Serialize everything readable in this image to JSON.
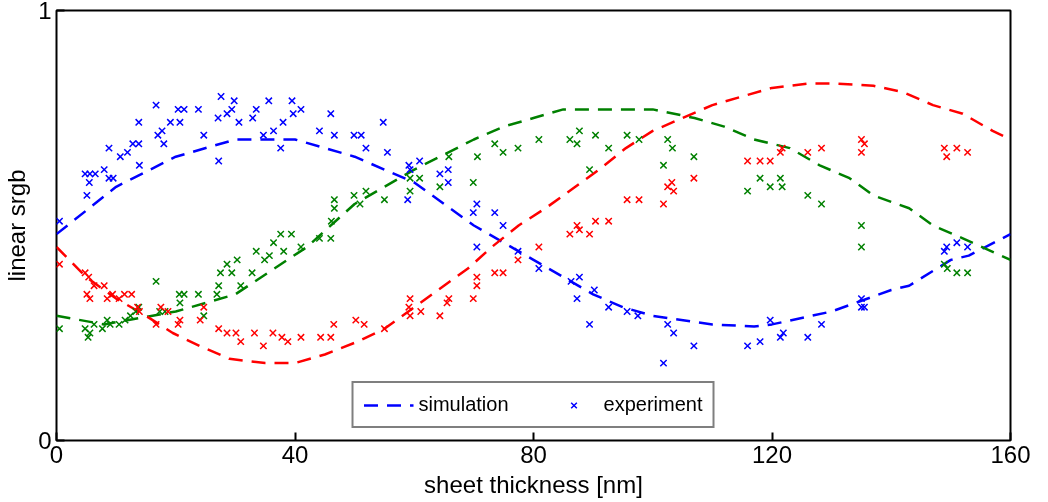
{
  "chart_data": {
    "type": "scatter",
    "xlabel": "sheet thickness [nm]",
    "ylabel": "linear srgb",
    "xlim": [
      0,
      160
    ],
    "ylim": [
      0,
      1
    ],
    "xticks": [
      0,
      40,
      80,
      120,
      160
    ],
    "yticks": [
      0,
      1
    ],
    "legend": "bottom",
    "series": [
      {
        "name": "simulation",
        "type": "line",
        "marker": "none",
        "line_style": "dashed",
        "color": "#0000ff",
        "x": [
          0,
          10,
          20,
          30,
          40,
          50,
          60,
          70,
          80,
          85,
          90,
          95,
          100,
          110,
          117,
          120,
          130,
          140,
          143,
          150,
          153,
          160
        ],
        "values": [
          0.48,
          0.59,
          0.66,
          0.7,
          0.7,
          0.66,
          0.6,
          0.5,
          0.42,
          0.38,
          0.34,
          0.31,
          0.29,
          0.27,
          0.265,
          0.27,
          0.3,
          0.35,
          0.36,
          0.42,
          0.43,
          0.48
        ]
      },
      {
        "type": "line",
        "marker": "none",
        "line_style": "dashed",
        "color": "#008000",
        "x": [
          0,
          8,
          20,
          30,
          42,
          50,
          55,
          60,
          65,
          70,
          75,
          80,
          85,
          91,
          100,
          107,
          112,
          117,
          123,
          128,
          133,
          137,
          143,
          147,
          152,
          160
        ],
        "values": [
          0.29,
          0.27,
          0.3,
          0.34,
          0.45,
          0.55,
          0.59,
          0.63,
          0.665,
          0.7,
          0.73,
          0.75,
          0.77,
          0.77,
          0.77,
          0.75,
          0.73,
          0.7,
          0.68,
          0.64,
          0.61,
          0.57,
          0.54,
          0.5,
          0.47,
          0.42
        ]
      },
      {
        "type": "line",
        "marker": "none",
        "line_style": "dashed",
        "color": "#ff0000",
        "x": [
          0,
          5,
          10,
          15,
          19.5,
          24,
          29,
          35,
          40,
          45,
          50.5,
          55,
          60,
          64,
          69,
          73,
          77.5,
          82,
          86.5,
          91,
          95.5,
          100,
          105,
          110,
          115,
          120,
          126,
          131,
          137,
          142,
          147,
          152,
          157,
          160
        ],
        "values": [
          0.45,
          0.38,
          0.33,
          0.29,
          0.25,
          0.22,
          0.19,
          0.18,
          0.18,
          0.2,
          0.23,
          0.26,
          0.31,
          0.35,
          0.4,
          0.45,
          0.5,
          0.54,
          0.585,
          0.63,
          0.68,
          0.72,
          0.75,
          0.78,
          0.8,
          0.82,
          0.83,
          0.83,
          0.825,
          0.81,
          0.78,
          0.76,
          0.72,
          0.7
        ]
      },
      {
        "name": "experiment",
        "marker": "cross",
        "color": "#0000ff",
        "x": [
          0.5,
          5.1,
          4.8,
          5.6,
          6.5,
          5.5,
          8.0,
          8.8,
          9.5,
          8.8,
          10.7,
          11.9,
          12.8,
          13.8,
          13.8,
          13.9,
          16.7,
          17.0,
          17.7,
          18.0,
          19.1,
          20.4,
          20.7,
          21.4,
          23.8,
          24.7,
          27.1,
          27.2,
          27.6,
          28.6,
          29.4,
          29.8,
          30.6,
          32.9,
          33.5,
          34.7,
          35.6,
          36.4,
          38.0,
          37.6,
          39.5,
          39.7,
          41.0,
          44.1,
          46.0,
          46.6,
          49.9,
          51.1,
          51.9,
          54.8,
          55.5,
          59.1,
          60.9,
          59.3,
          64.3,
          65.7,
          65.7,
          58.9,
          70.5,
          69.9,
          73.5,
          74.9,
          70.5,
          77.4,
          80.9,
          86.3,
          87.7,
          87.3,
          90.2,
          92.6,
          89.4,
          95.7,
          97.5,
          102.5,
          103.5,
          101.8,
          106.9,
          115.9,
          118.0,
          119.7,
          121.4,
          121.9,
          126.0,
          128.3,
          135.0,
          135.0,
          135.5,
          148.9,
          149.3,
          151.0,
          152.8
        ],
        "values": [
          0.51,
          0.57,
          0.62,
          0.62,
          0.62,
          0.6,
          0.63,
          0.61,
          0.61,
          0.68,
          0.66,
          0.67,
          0.69,
          0.69,
          0.74,
          0.64,
          0.78,
          0.71,
          0.72,
          0.69,
          0.74,
          0.77,
          0.74,
          0.77,
          0.77,
          0.71,
          0.75,
          0.65,
          0.8,
          0.76,
          0.77,
          0.79,
          0.74,
          0.75,
          0.77,
          0.71,
          0.79,
          0.72,
          0.74,
          0.68,
          0.79,
          0.76,
          0.77,
          0.72,
          0.76,
          0.71,
          0.71,
          0.71,
          0.68,
          0.74,
          0.67,
          0.64,
          0.65,
          0.63,
          0.62,
          0.63,
          0.6,
          0.56,
          0.55,
          0.53,
          0.53,
          0.5,
          0.45,
          0.44,
          0.4,
          0.37,
          0.38,
          0.33,
          0.35,
          0.31,
          0.27,
          0.3,
          0.29,
          0.27,
          0.25,
          0.18,
          0.22,
          0.22,
          0.23,
          0.28,
          0.24,
          0.25,
          0.24,
          0.27,
          0.33,
          0.31,
          0.31,
          0.44,
          0.45,
          0.46,
          0.45
        ]
      },
      {
        "marker": "cross",
        "color": "#008000",
        "x": [
          0.5,
          4.8,
          5.3,
          5.6,
          6.3,
          7.7,
          8.5,
          9.0,
          10.5,
          11.5,
          12.4,
          13.3,
          13.8,
          16.7,
          17.3,
          18.2,
          20.7,
          20.6,
          21.4,
          23.8,
          24.7,
          26.9,
          27.2,
          27.5,
          28.6,
          29.4,
          30.3,
          30.9,
          32.8,
          33.5,
          34.9,
          35.7,
          36.4,
          37.6,
          38.1,
          39.4,
          41.0,
          44.1,
          46.0,
          46.1,
          46.6,
          46.6,
          49.9,
          50.9,
          51.9,
          55.0,
          59.3,
          60.9,
          59.3,
          64.3,
          65.8,
          69.9,
          70.6,
          73.5,
          74.9,
          77.4,
          80.9,
          86.1,
          87.7,
          87.3,
          90.4,
          92.6,
          89.4,
          95.7,
          97.7,
          102.5,
          103.3,
          101.8,
          106.9,
          115.9,
          118.0,
          119.7,
          121.4,
          121.7,
          126.0,
          128.3,
          135.0,
          135.0,
          148.9,
          149.4,
          151.0,
          152.8
        ],
        "values": [
          0.26,
          0.26,
          0.24,
          0.25,
          0.27,
          0.26,
          0.28,
          0.27,
          0.27,
          0.28,
          0.29,
          0.3,
          0.31,
          0.37,
          0.3,
          0.3,
          0.32,
          0.34,
          0.34,
          0.34,
          0.29,
          0.34,
          0.36,
          0.39,
          0.41,
          0.39,
          0.42,
          0.36,
          0.39,
          0.44,
          0.42,
          0.43,
          0.46,
          0.48,
          0.44,
          0.48,
          0.45,
          0.47,
          0.47,
          0.51,
          0.56,
          0.54,
          0.57,
          0.55,
          0.58,
          0.56,
          0.61,
          0.61,
          0.58,
          0.59,
          0.66,
          0.6,
          0.66,
          0.69,
          0.67,
          0.68,
          0.7,
          0.7,
          0.72,
          0.69,
          0.71,
          0.68,
          0.63,
          0.71,
          0.7,
          0.7,
          0.68,
          0.64,
          0.66,
          0.58,
          0.61,
          0.59,
          0.61,
          0.59,
          0.57,
          0.55,
          0.5,
          0.45,
          0.41,
          0.4,
          0.39,
          0.39
        ]
      },
      {
        "marker": "cross",
        "color": "#ff0000",
        "x": [
          0.5,
          4.8,
          5.4,
          6.3,
          5.1,
          5.6,
          8.0,
          8.5,
          9.4,
          10.5,
          11.4,
          12.6,
          13.6,
          13.9,
          16.7,
          17.5,
          18.7,
          20.7,
          20.4,
          24.1,
          24.7,
          27.2,
          28.6,
          30.1,
          30.9,
          33.2,
          34.7,
          36.3,
          37.8,
          38.8,
          41.0,
          44.3,
          46.0,
          46.5,
          50.2,
          51.6,
          55.0,
          59.3,
          59.1,
          59.3,
          61.1,
          64.3,
          65.8,
          65.5,
          69.9,
          70.5,
          70.5,
          73.5,
          74.9,
          77.4,
          80.9,
          86.1,
          87.3,
          87.7,
          90.4,
          89.4,
          92.6,
          95.7,
          97.7,
          101.8,
          102.5,
          103.2,
          103.5,
          106.9,
          115.9,
          118.0,
          119.7,
          121.4,
          121.7,
          126.0,
          128.3,
          135.0,
          135.5,
          135.0,
          148.9,
          149.3,
          151.0,
          152.8
        ],
        "values": [
          0.41,
          0.39,
          0.38,
          0.36,
          0.34,
          0.33,
          0.36,
          0.33,
          0.34,
          0.33,
          0.34,
          0.34,
          0.31,
          0.3,
          0.27,
          0.31,
          0.3,
          0.28,
          0.27,
          0.28,
          0.31,
          0.26,
          0.25,
          0.25,
          0.23,
          0.25,
          0.22,
          0.25,
          0.24,
          0.23,
          0.24,
          0.24,
          0.24,
          0.27,
          0.28,
          0.27,
          0.26,
          0.33,
          0.31,
          0.29,
          0.3,
          0.29,
          0.33,
          0.32,
          0.33,
          0.38,
          0.36,
          0.39,
          0.39,
          0.42,
          0.45,
          0.48,
          0.5,
          0.49,
          0.51,
          0.48,
          0.51,
          0.56,
          0.56,
          0.55,
          0.59,
          0.6,
          0.58,
          0.61,
          0.65,
          0.65,
          0.65,
          0.67,
          0.68,
          0.67,
          0.68,
          0.7,
          0.69,
          0.67,
          0.68,
          0.66,
          0.68,
          0.67
        ]
      }
    ]
  }
}
